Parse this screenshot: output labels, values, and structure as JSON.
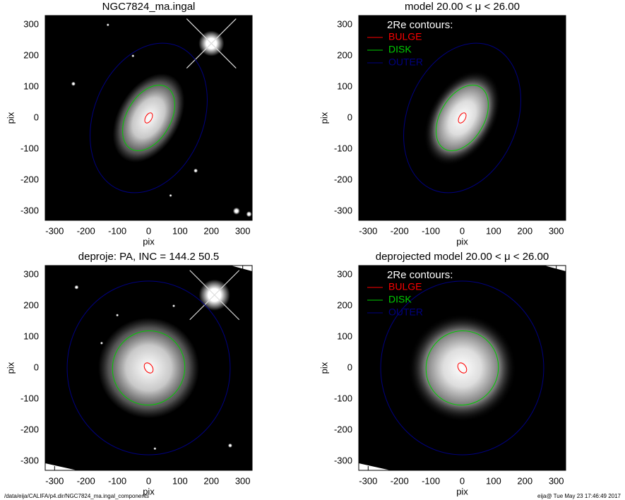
{
  "chart_data": [
    {
      "type": "image",
      "title": "NGC7824_ma.ingal",
      "xlabel": "pix",
      "ylabel": "pix",
      "xlim": [
        -330,
        330
      ],
      "ylim": [
        -330,
        330
      ],
      "xticks": [
        -300,
        -200,
        -100,
        0,
        100,
        200,
        300
      ],
      "yticks": [
        -300,
        -200,
        -100,
        0,
        100,
        200,
        300
      ],
      "series": [
        {
          "color": "#ff0000",
          "a": 10,
          "b": 18,
          "angle": -30
        },
        {
          "color": "#00cc00",
          "a": 70,
          "b": 115,
          "angle": -30
        },
        {
          "color": "#000080",
          "a": 175,
          "b": 250,
          "angle": -22
        }
      ]
    },
    {
      "type": "image",
      "title": "model  20.00 < μ <  26.00",
      "xlabel": "pix",
      "ylabel": "pix",
      "xlim": [
        -330,
        330
      ],
      "ylim": [
        -330,
        330
      ],
      "xticks": [
        -300,
        -200,
        -100,
        0,
        100,
        200,
        300
      ],
      "yticks": [
        -300,
        -200,
        -100,
        0,
        100,
        200,
        300
      ],
      "legend_title": "2Re contours:",
      "series": [
        {
          "name": "BULGE",
          "color": "#ff0000",
          "a": 10,
          "b": 18,
          "angle": -30
        },
        {
          "name": "DISK",
          "color": "#00cc00",
          "a": 70,
          "b": 115,
          "angle": -30
        },
        {
          "name": "OUTER",
          "color": "#000080",
          "a": 175,
          "b": 250,
          "angle": -22
        }
      ]
    },
    {
      "type": "image",
      "title": "deproje: PA, INC = 144.2    50.5",
      "xlabel": "pix",
      "ylabel": "pix",
      "xlim": [
        -330,
        330
      ],
      "ylim": [
        -330,
        330
      ],
      "xticks": [
        -300,
        -200,
        -100,
        0,
        100,
        200,
        300
      ],
      "yticks": [
        -300,
        -200,
        -100,
        0,
        100,
        200,
        300
      ],
      "series": [
        {
          "color": "#ff0000",
          "a": 12,
          "b": 18,
          "angle": 35
        },
        {
          "color": "#00cc00",
          "a": 115,
          "b": 120,
          "angle": -20
        },
        {
          "color": "#000080",
          "a": 260,
          "b": 280,
          "angle": 0
        }
      ]
    },
    {
      "type": "image",
      "title": "deprojected model  20.00 < μ <  26.00",
      "xlabel": "pix",
      "ylabel": "pix",
      "xlim": [
        -330,
        330
      ],
      "ylim": [
        -330,
        330
      ],
      "xticks": [
        -300,
        -200,
        -100,
        0,
        100,
        200,
        300
      ],
      "yticks": [
        -300,
        -200,
        -100,
        0,
        100,
        200,
        300
      ],
      "legend_title": "2Re contours:",
      "series": [
        {
          "name": "BULGE",
          "color": "#ff0000",
          "a": 12,
          "b": 18,
          "angle": 35
        },
        {
          "name": "DISK",
          "color": "#00cc00",
          "a": 115,
          "b": 120,
          "angle": -20
        },
        {
          "name": "OUTER",
          "color": "#000080",
          "a": 260,
          "b": 280,
          "angle": 0
        }
      ]
    }
  ],
  "footer": {
    "path": "/data/eija/CALIFA/p4.dir/NGC7824_ma.ingal_components",
    "stamp": "eija@  Tue May 23 17:46:49 2017"
  }
}
